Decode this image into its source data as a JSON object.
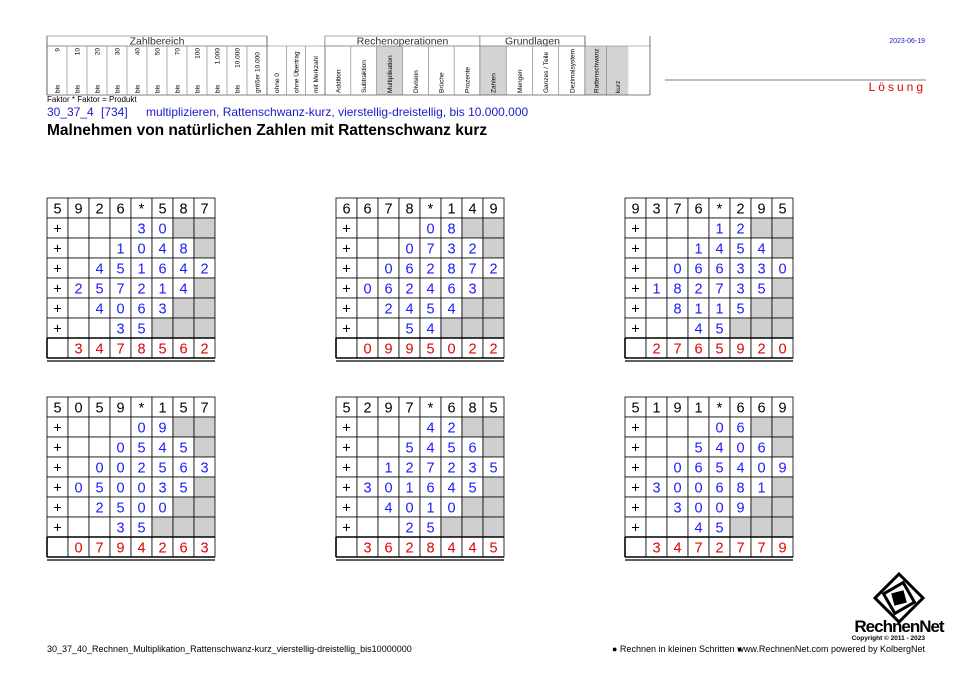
{
  "header": {
    "groups": [
      {
        "title": "Zahlbereich",
        "columns": [
          {
            "label": "9",
            "sub": "bis"
          },
          {
            "label": "10",
            "sub": "bis"
          },
          {
            "label": "20",
            "sub": "bis"
          },
          {
            "label": "30",
            "sub": "bis"
          },
          {
            "label": "40",
            "sub": "bis"
          },
          {
            "label": "50",
            "sub": "bis"
          },
          {
            "label": "70",
            "sub": "bis"
          },
          {
            "label": "100",
            "sub": "bis"
          },
          {
            "label": "1.000",
            "sub": "bis"
          },
          {
            "label": "10.000",
            "sub": "bis"
          },
          {
            "label": "größer 10.000"
          }
        ]
      },
      {
        "columns": [
          {
            "label": "ohne 0"
          },
          {
            "label": "ohne Übertrag"
          },
          {
            "label": "mit Merkzahl"
          }
        ]
      },
      {
        "title": "Rechenoperationen",
        "columns": [
          {
            "label": "Addition"
          },
          {
            "label": "Subtraktion"
          },
          {
            "label": "Multiplikation",
            "shaded": true
          },
          {
            "label": "Division"
          },
          {
            "label": "Brüche"
          },
          {
            "label": "Prozente"
          }
        ]
      },
      {
        "title": "Grundlagen",
        "columns": [
          {
            "label": "Zahlen",
            "shaded": true
          },
          {
            "label": "Mengen"
          },
          {
            "label": "Ganzes / Teile"
          },
          {
            "label": "Dezimalsystem"
          }
        ]
      },
      {
        "columns": [
          {
            "label": "Rattenschwanz",
            "shaded": true
          },
          {
            "label": "kurz",
            "shaded": true
          }
        ]
      }
    ],
    "date": "2023-06-19",
    "solution": "Lösung"
  },
  "formula": "Faktor * Faktor = Produkt",
  "code": "30_37_4",
  "number": "[734]",
  "description": "multiplizieren, Rattenschwanz-kurz, vierstellig-dreistellig, bis 10.000.000",
  "title": "Malnehmen von natürlichen Zahlen mit Rattenschwanz kurz",
  "grids": [
    {
      "rows": [
        [
          "5",
          "9",
          "2",
          "6",
          "*",
          "5",
          "8",
          "7"
        ],
        [
          "+",
          null,
          null,
          null,
          "3",
          "0",
          null,
          null
        ],
        [
          "+",
          null,
          null,
          "1",
          "0",
          "4",
          "8",
          null
        ],
        [
          "+",
          null,
          "4",
          "5",
          "1",
          "6",
          "4",
          "2"
        ],
        [
          "+",
          "2",
          "5",
          "7",
          "2",
          "1",
          "4",
          null
        ],
        [
          "+",
          null,
          "4",
          "0",
          "6",
          "3",
          null,
          null
        ],
        [
          "+",
          null,
          null,
          "3",
          "5",
          null,
          null,
          null
        ],
        [
          null,
          "3",
          "4",
          "7",
          "8",
          "5",
          "6",
          "2"
        ]
      ]
    },
    {
      "rows": [
        [
          "6",
          "6",
          "7",
          "8",
          "*",
          "1",
          "4",
          "9"
        ],
        [
          "+",
          null,
          null,
          null,
          "0",
          "8",
          null,
          null
        ],
        [
          "+",
          null,
          null,
          "0",
          "7",
          "3",
          "2",
          null
        ],
        [
          "+",
          null,
          "0",
          "6",
          "2",
          "8",
          "7",
          "2"
        ],
        [
          "+",
          "0",
          "6",
          "2",
          "4",
          "6",
          "3",
          null
        ],
        [
          "+",
          null,
          "2",
          "4",
          "5",
          "4",
          null,
          null
        ],
        [
          "+",
          null,
          null,
          "5",
          "4",
          null,
          null,
          null
        ],
        [
          null,
          "0",
          "9",
          "9",
          "5",
          "0",
          "2",
          "2"
        ]
      ]
    },
    {
      "rows": [
        [
          "9",
          "3",
          "7",
          "6",
          "*",
          "2",
          "9",
          "5"
        ],
        [
          "+",
          null,
          null,
          null,
          "1",
          "2",
          null,
          null
        ],
        [
          "+",
          null,
          null,
          "1",
          "4",
          "5",
          "4",
          null
        ],
        [
          "+",
          null,
          "0",
          "6",
          "6",
          "3",
          "3",
          "0"
        ],
        [
          "+",
          "1",
          "8",
          "2",
          "7",
          "3",
          "5",
          null
        ],
        [
          "+",
          null,
          "8",
          "1",
          "1",
          "5",
          null,
          null
        ],
        [
          "+",
          null,
          null,
          "4",
          "5",
          null,
          null,
          null
        ],
        [
          null,
          "2",
          "7",
          "6",
          "5",
          "9",
          "2",
          "0"
        ]
      ]
    },
    {
      "rows": [
        [
          "5",
          "0",
          "5",
          "9",
          "*",
          "1",
          "5",
          "7"
        ],
        [
          "+",
          null,
          null,
          null,
          "0",
          "9",
          null,
          null
        ],
        [
          "+",
          null,
          null,
          "0",
          "5",
          "4",
          "5",
          null
        ],
        [
          "+",
          null,
          "0",
          "0",
          "2",
          "5",
          "6",
          "3"
        ],
        [
          "+",
          "0",
          "5",
          "0",
          "0",
          "3",
          "5",
          null
        ],
        [
          "+",
          null,
          "2",
          "5",
          "0",
          "0",
          null,
          null
        ],
        [
          "+",
          null,
          null,
          "3",
          "5",
          null,
          null,
          null
        ],
        [
          null,
          "0",
          "7",
          "9",
          "4",
          "2",
          "6",
          "3"
        ]
      ]
    },
    {
      "rows": [
        [
          "5",
          "2",
          "9",
          "7",
          "*",
          "6",
          "8",
          "5"
        ],
        [
          "+",
          null,
          null,
          null,
          "4",
          "2",
          null,
          null
        ],
        [
          "+",
          null,
          null,
          "5",
          "4",
          "5",
          "6",
          null
        ],
        [
          "+",
          null,
          "1",
          "2",
          "7",
          "2",
          "3",
          "5"
        ],
        [
          "+",
          "3",
          "0",
          "1",
          "6",
          "4",
          "5",
          null
        ],
        [
          "+",
          null,
          "4",
          "0",
          "1",
          "0",
          null,
          null
        ],
        [
          "+",
          null,
          null,
          "2",
          "5",
          null,
          null,
          null
        ],
        [
          null,
          "3",
          "6",
          "2",
          "8",
          "4",
          "4",
          "5"
        ]
      ]
    },
    {
      "rows": [
        [
          "5",
          "1",
          "9",
          "1",
          "*",
          "6",
          "6",
          "9"
        ],
        [
          "+",
          null,
          null,
          null,
          "0",
          "6",
          null,
          null
        ],
        [
          "+",
          null,
          null,
          "5",
          "4",
          "0",
          "6",
          null
        ],
        [
          "+",
          null,
          "0",
          "6",
          "5",
          "4",
          "0",
          "9"
        ],
        [
          "+",
          "3",
          "0",
          "0",
          "6",
          "8",
          "1",
          null
        ],
        [
          "+",
          null,
          "3",
          "0",
          "0",
          "9",
          null,
          null
        ],
        [
          "+",
          null,
          null,
          "4",
          "5",
          null,
          null,
          null
        ],
        [
          null,
          "3",
          "4",
          "7",
          "2",
          "7",
          "7",
          "9"
        ]
      ]
    }
  ],
  "footer": {
    "file": "30_37_40_Rechnen_Multiplikation_Rattenschwanz-kurz_vierstellig-dreistellig_bis10000000",
    "slogan": "● Rechnen in kleinen Schritten ●",
    "website": "www.RechnenNet.com powered by KolbergNet",
    "logo": "RechnenNet",
    "copyright": "Copyright © 2011 - 2023"
  }
}
